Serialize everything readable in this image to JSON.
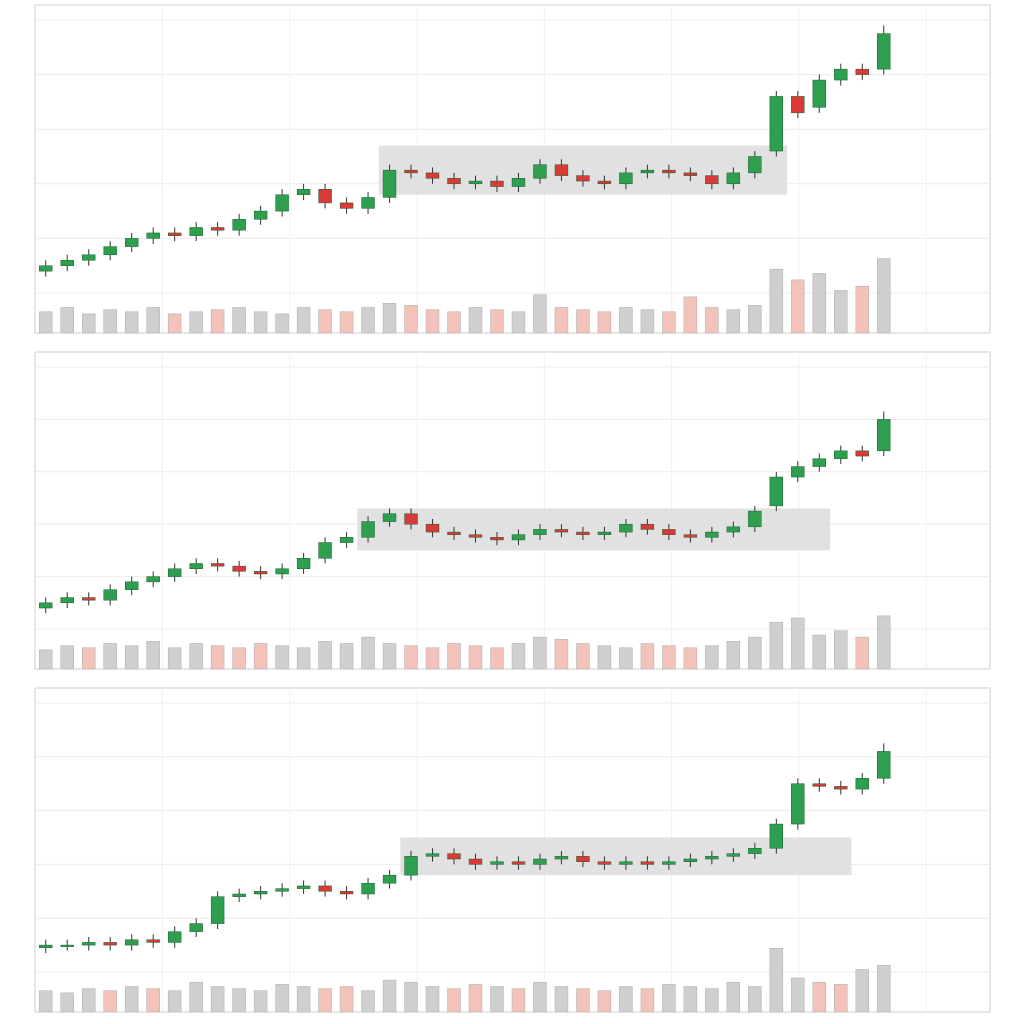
{
  "chart_data": [
    {
      "type": "candlestick",
      "grid": true,
      "ylim": [
        0,
        100
      ],
      "yticks": [
        0,
        20,
        40,
        60,
        80,
        100
      ],
      "volume_ylim": [
        0,
        40
      ],
      "up_color": "#2e9e4f",
      "down_color": "#d93a35",
      "volume_up_color": "#cfcfcf",
      "volume_down_color": "#f3c2b8",
      "highlight_color": "#dedede",
      "open": [
        8,
        10,
        12,
        14,
        17,
        20,
        22,
        21,
        24,
        23,
        27,
        30,
        36,
        38,
        33,
        31,
        35,
        45,
        44,
        42,
        40,
        41,
        39,
        42,
        47,
        43,
        41,
        40,
        44,
        45,
        44,
        43,
        40,
        44,
        52,
        72,
        68,
        78,
        82,
        82
      ],
      "high": [
        12,
        14,
        16,
        19,
        22,
        24,
        24,
        26,
        26,
        29,
        32,
        38,
        40,
        40,
        35,
        37,
        47,
        47,
        46,
        44,
        43,
        43,
        44,
        49,
        49,
        45,
        43,
        46,
        47,
        47,
        46,
        45,
        46,
        52,
        74,
        74,
        80,
        84,
        84,
        98
      ],
      "low": [
        6,
        8,
        10,
        12,
        15,
        18,
        19,
        19,
        21,
        21,
        25,
        28,
        34,
        31,
        29,
        29,
        33,
        42,
        40,
        38,
        38,
        37,
        37,
        40,
        41,
        39,
        38,
        38,
        42,
        42,
        41,
        38,
        38,
        42,
        50,
        64,
        66,
        76,
        78,
        80
      ],
      "close": [
        10,
        12,
        14,
        17,
        20,
        22,
        21,
        24,
        23,
        27,
        30,
        36,
        38,
        33,
        31,
        35,
        45,
        44,
        42,
        40,
        41,
        39,
        42,
        47,
        43,
        41,
        40,
        44,
        45,
        44,
        43,
        40,
        44,
        50,
        72,
        66,
        78,
        82,
        80,
        95
      ],
      "volume": [
        10,
        12,
        9,
        11,
        10,
        12,
        9,
        10,
        11,
        12,
        10,
        9,
        12,
        11,
        10,
        12,
        14,
        13,
        11,
        10,
        12,
        11,
        10,
        18,
        12,
        11,
        10,
        12,
        11,
        10,
        17,
        12,
        11,
        13,
        30,
        25,
        28,
        20,
        22,
        35
      ],
      "highlight": {
        "start": 16,
        "end": 34,
        "low": 36,
        "high": 54
      }
    },
    {
      "type": "candlestick",
      "grid": true,
      "ylim": [
        0,
        100
      ],
      "yticks": [
        0,
        20,
        40,
        60,
        80,
        100
      ],
      "volume_ylim": [
        0,
        40
      ],
      "up_color": "#2e9e4f",
      "down_color": "#d93a35",
      "volume_up_color": "#cfcfcf",
      "volume_down_color": "#f3c2b8",
      "highlight_color": "#dedede",
      "open": [
        8,
        10,
        12,
        11,
        15,
        18,
        20,
        23,
        25,
        24,
        22,
        21,
        23,
        27,
        33,
        35,
        41,
        44,
        40,
        37,
        36,
        35,
        34,
        36,
        38,
        37,
        36,
        37,
        40,
        38,
        36,
        35,
        37,
        39,
        47,
        58,
        62,
        65,
        68,
        68
      ],
      "high": [
        12,
        14,
        14,
        17,
        20,
        22,
        25,
        27,
        27,
        26,
        24,
        25,
        29,
        35,
        37,
        43,
        46,
        46,
        42,
        39,
        38,
        37,
        38,
        40,
        40,
        39,
        39,
        42,
        42,
        40,
        38,
        39,
        41,
        47,
        60,
        64,
        67,
        70,
        70,
        83
      ],
      "low": [
        6,
        8,
        9,
        9,
        13,
        16,
        18,
        21,
        22,
        20,
        19,
        19,
        21,
        25,
        31,
        33,
        39,
        38,
        35,
        34,
        33,
        32,
        32,
        34,
        35,
        34,
        34,
        35,
        36,
        34,
        33,
        33,
        35,
        37,
        45,
        56,
        60,
        63,
        64,
        66
      ],
      "close": [
        10,
        12,
        11,
        15,
        18,
        20,
        23,
        25,
        24,
        22,
        21,
        23,
        27,
        33,
        35,
        41,
        44,
        40,
        37,
        36,
        35,
        34,
        36,
        38,
        37,
        36,
        37,
        40,
        38,
        36,
        35,
        37,
        39,
        45,
        58,
        62,
        65,
        68,
        66,
        80
      ],
      "volume": [
        9,
        11,
        10,
        12,
        11,
        13,
        10,
        12,
        11,
        10,
        12,
        11,
        10,
        13,
        12,
        15,
        12,
        11,
        10,
        12,
        11,
        10,
        12,
        15,
        14,
        12,
        11,
        10,
        12,
        11,
        10,
        11,
        13,
        15,
        22,
        24,
        16,
        18,
        15,
        25
      ],
      "highlight": {
        "start": 15,
        "end": 36,
        "low": 30,
        "high": 46
      }
    },
    {
      "type": "candlestick",
      "grid": true,
      "ylim": [
        0,
        100
      ],
      "yticks": [
        0,
        20,
        40,
        60,
        80,
        100
      ],
      "volume_ylim": [
        0,
        40
      ],
      "up_color": "#2e9e4f",
      "down_color": "#d93a35",
      "volume_up_color": "#cfcfcf",
      "volume_down_color": "#f3c2b8",
      "highlight_color": "#dedede",
      "open": [
        9,
        10,
        10,
        11,
        10,
        12,
        11,
        15,
        18,
        28,
        29,
        30,
        31,
        32,
        30,
        29,
        33,
        36,
        43,
        44,
        42,
        40,
        41,
        40,
        42,
        43,
        41,
        40,
        41,
        40,
        41,
        42,
        43,
        44,
        46,
        55,
        70,
        69,
        68,
        72
      ],
      "high": [
        12,
        12,
        13,
        13,
        14,
        14,
        17,
        20,
        30,
        31,
        32,
        33,
        34,
        34,
        32,
        35,
        38,
        45,
        46,
        46,
        44,
        43,
        43,
        44,
        45,
        45,
        43,
        43,
        43,
        43,
        44,
        45,
        46,
        48,
        57,
        72,
        72,
        71,
        74,
        85
      ],
      "low": [
        7,
        8,
        8,
        8,
        8,
        9,
        9,
        13,
        16,
        26,
        27,
        28,
        29,
        28,
        27,
        27,
        31,
        34,
        41,
        40,
        38,
        38,
        38,
        38,
        40,
        39,
        38,
        38,
        38,
        38,
        39,
        40,
        41,
        42,
        44,
        53,
        67,
        66,
        66,
        70
      ],
      "close": [
        10,
        10,
        11,
        10,
        12,
        11,
        15,
        18,
        28,
        29,
        30,
        31,
        32,
        30,
        29,
        33,
        36,
        43,
        44,
        42,
        40,
        41,
        40,
        42,
        43,
        41,
        40,
        41,
        40,
        41,
        42,
        43,
        44,
        46,
        55,
        70,
        69,
        68,
        72,
        82
      ],
      "volume": [
        10,
        9,
        11,
        10,
        12,
        11,
        10,
        14,
        12,
        11,
        10,
        13,
        12,
        11,
        12,
        10,
        15,
        14,
        12,
        11,
        13,
        12,
        11,
        14,
        12,
        11,
        10,
        12,
        11,
        13,
        12,
        11,
        14,
        12,
        30,
        16,
        14,
        13,
        20,
        22
      ],
      "highlight": {
        "start": 17,
        "end": 37,
        "low": 36,
        "high": 50
      }
    }
  ]
}
